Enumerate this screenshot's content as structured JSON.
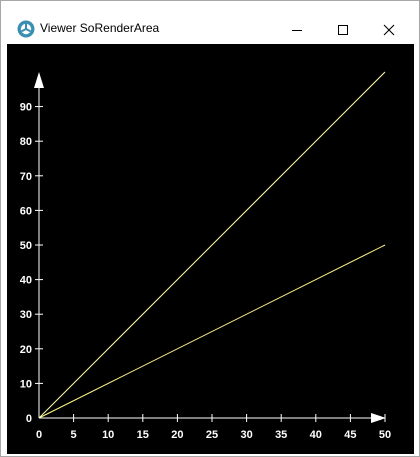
{
  "window": {
    "title": "Viewer SoRenderArea",
    "icons": {
      "app": "app-logo-icon",
      "minimize": "minimize-icon",
      "maximize": "maximize-icon",
      "close": "close-icon"
    }
  },
  "chart_data": {
    "type": "line",
    "title": "",
    "xlabel": "",
    "ylabel": "",
    "xlim": [
      0,
      50
    ],
    "ylim": [
      0,
      100
    ],
    "x_ticks": [
      0,
      5,
      10,
      15,
      20,
      25,
      30,
      35,
      40,
      45,
      50
    ],
    "y_ticks": [
      0,
      10,
      20,
      30,
      40,
      50,
      60,
      70,
      80,
      90
    ],
    "grid": false,
    "background": "#000000",
    "axis_color": "#ffffff",
    "series": [
      {
        "color": "#ffffa8",
        "x": [
          0,
          50
        ],
        "y": [
          0,
          100
        ]
      },
      {
        "color": "#ffff80",
        "x": [
          0,
          50
        ],
        "y": [
          0,
          50
        ]
      }
    ]
  }
}
